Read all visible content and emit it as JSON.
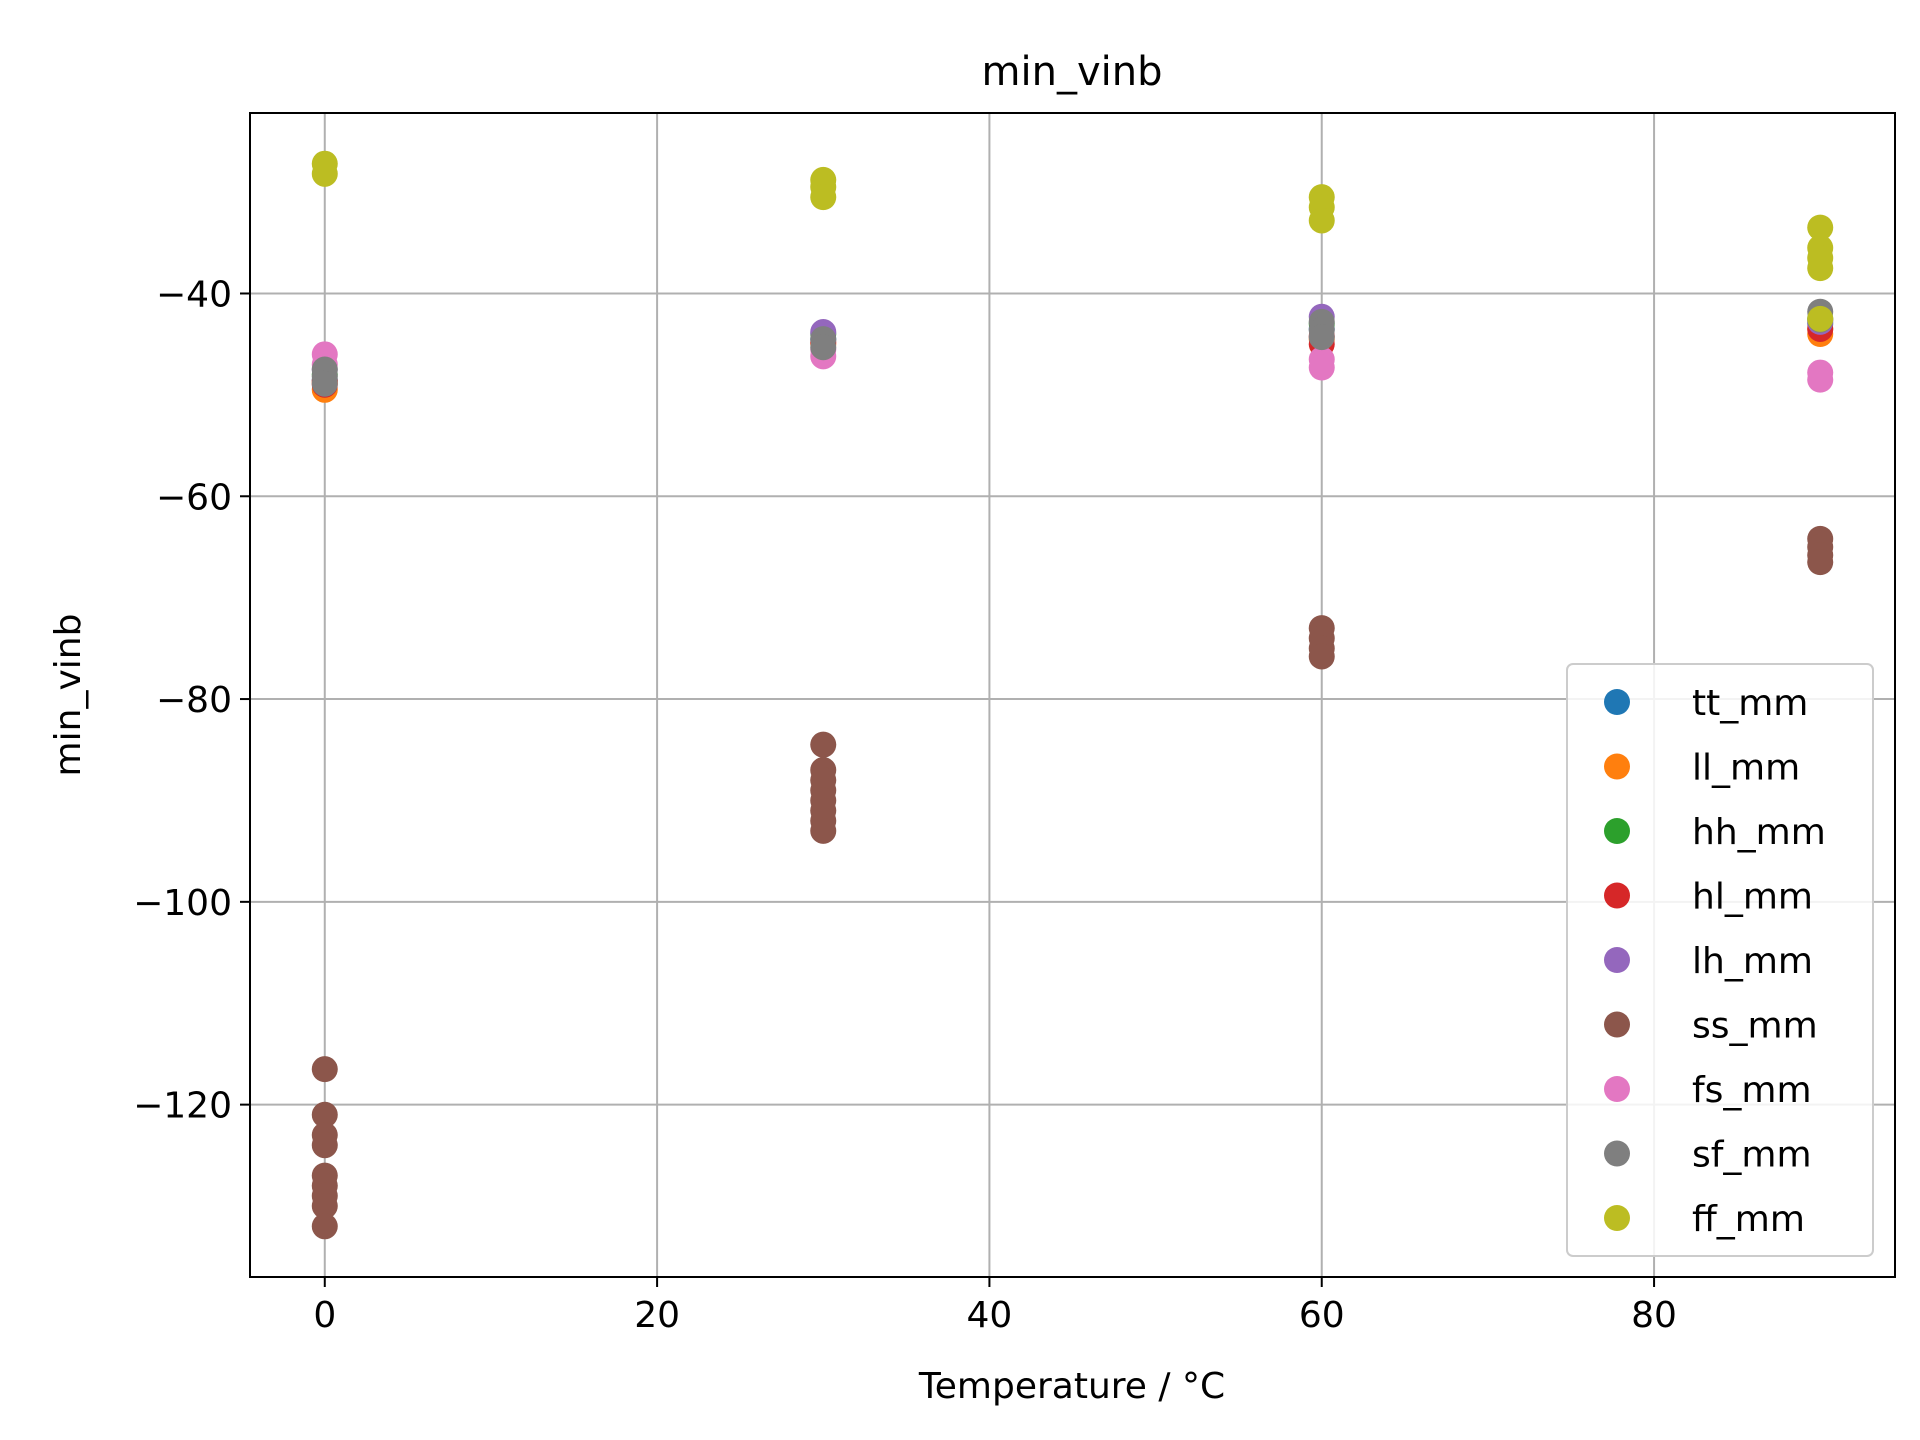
{
  "chart_data": {
    "type": "scatter",
    "title": "min_vinb",
    "xlabel": "Temperature / °C",
    "ylabel": "min_vinb",
    "xlim": [
      -4.5,
      94.5
    ],
    "ylim": [
      -137,
      -22.2
    ],
    "xticks": [
      0,
      20,
      40,
      60,
      80
    ],
    "yticks": [
      -120,
      -100,
      -80,
      -60,
      -40
    ],
    "grid": true,
    "legend_position": "lower right",
    "series": [
      {
        "name": "tt_mm",
        "color": "#1f77b4",
        "points": [
          [
            0,
            -48.5
          ],
          [
            30,
            -44.5
          ],
          [
            60,
            -43.5
          ],
          [
            90,
            -43
          ]
        ]
      },
      {
        "name": "ll_mm",
        "color": "#ff7f0e",
        "points": [
          [
            0,
            -49.5
          ],
          [
            0,
            -48.8
          ],
          [
            30,
            -45
          ],
          [
            60,
            -44.5
          ],
          [
            90,
            -44
          ],
          [
            90,
            -43.5
          ]
        ]
      },
      {
        "name": "hh_mm",
        "color": "#2ca02c",
        "points": [
          [
            0,
            -48
          ],
          [
            30,
            -44
          ],
          [
            60,
            -43
          ],
          [
            90,
            -42.5
          ]
        ]
      },
      {
        "name": "hl_mm",
        "color": "#d62728",
        "points": [
          [
            0,
            -49
          ],
          [
            0,
            -48.6
          ],
          [
            30,
            -44.8
          ],
          [
            60,
            -45
          ],
          [
            60,
            -44.2
          ],
          [
            90,
            -43.5
          ]
        ]
      },
      {
        "name": "lh_mm",
        "color": "#9467bd",
        "points": [
          [
            0,
            -47.5
          ],
          [
            30,
            -43.8
          ],
          [
            60,
            -42.3
          ],
          [
            90,
            -42.8
          ]
        ]
      },
      {
        "name": "ss_mm",
        "color": "#8c564b",
        "points": [
          [
            0,
            -116.5
          ],
          [
            0,
            -121
          ],
          [
            0,
            -123
          ],
          [
            0,
            -124
          ],
          [
            0,
            -127
          ],
          [
            0,
            -128
          ],
          [
            0,
            -129
          ],
          [
            0,
            -130
          ],
          [
            0,
            -132
          ],
          [
            30,
            -84.5
          ],
          [
            30,
            -87
          ],
          [
            30,
            -88
          ],
          [
            30,
            -89
          ],
          [
            30,
            -90
          ],
          [
            30,
            -91
          ],
          [
            30,
            -92
          ],
          [
            30,
            -93
          ],
          [
            60,
            -73
          ],
          [
            60,
            -74
          ],
          [
            60,
            -75
          ],
          [
            60,
            -75.8
          ],
          [
            90,
            -64.2
          ],
          [
            90,
            -65
          ],
          [
            90,
            -65.8
          ],
          [
            90,
            -66.5
          ]
        ]
      },
      {
        "name": "fs_mm",
        "color": "#e377c2",
        "points": [
          [
            0,
            -46
          ],
          [
            0,
            -47
          ],
          [
            30,
            -45.5
          ],
          [
            30,
            -46.2
          ],
          [
            60,
            -46.5
          ],
          [
            60,
            -47.3
          ],
          [
            90,
            -47.8
          ],
          [
            90,
            -48.5
          ]
        ]
      },
      {
        "name": "sf_mm",
        "color": "#7f7f7f",
        "points": [
          [
            0,
            -47.5
          ],
          [
            0,
            -48.2
          ],
          [
            0,
            -48.9
          ],
          [
            30,
            -44.5
          ],
          [
            30,
            -45.3
          ],
          [
            60,
            -42.8
          ],
          [
            60,
            -43.6
          ],
          [
            60,
            -44.3
          ],
          [
            90,
            -41.8
          ],
          [
            90,
            -42.6
          ]
        ]
      },
      {
        "name": "ff_mm",
        "color": "#bcbd22",
        "points": [
          [
            0,
            -27.2
          ],
          [
            0,
            -28.2
          ],
          [
            30,
            -28.8
          ],
          [
            30,
            -29.5
          ],
          [
            30,
            -30.5
          ],
          [
            60,
            -30.5
          ],
          [
            60,
            -31.5
          ],
          [
            60,
            -32.8
          ],
          [
            90,
            -33.5
          ],
          [
            90,
            -35.5
          ],
          [
            90,
            -36.5
          ],
          [
            90,
            -37.5
          ],
          [
            90,
            -42.5
          ]
        ]
      }
    ]
  }
}
